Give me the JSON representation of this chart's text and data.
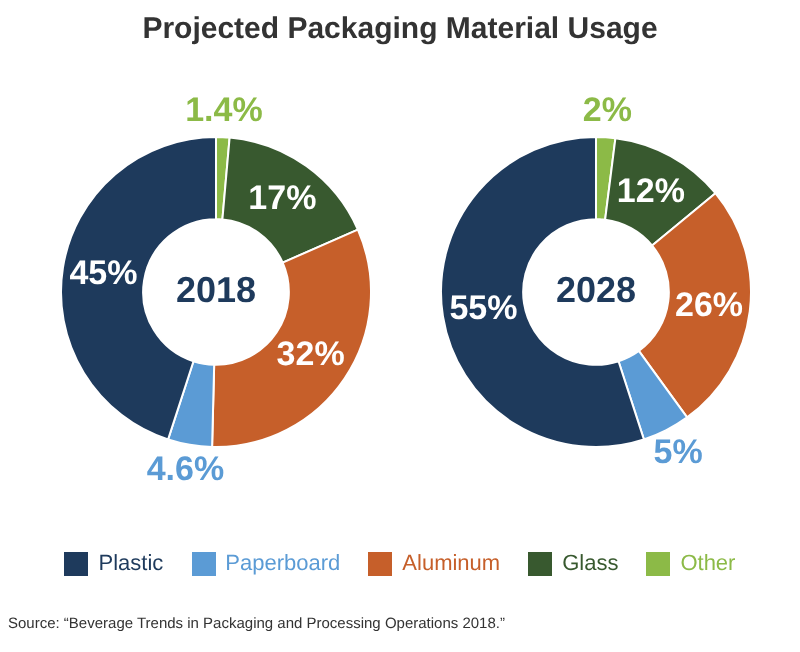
{
  "chart_data": {
    "type": "donut",
    "title": "Projected Packaging Material Usage",
    "categories": [
      "Plastic",
      "Paperboard",
      "Aluminum",
      "Glass",
      "Other"
    ],
    "colors": [
      "#1e3a5c",
      "#5b9bd5",
      "#c65f2a",
      "#38592f",
      "#8cba47"
    ],
    "series": [
      {
        "name": "2018",
        "values": [
          45,
          4.6,
          32,
          17,
          1.4
        ],
        "value_labels": [
          "45%",
          "4.6%",
          "32%",
          "17%",
          "1.4%"
        ]
      },
      {
        "name": "2028",
        "values": [
          55,
          5,
          26,
          12,
          2
        ],
        "value_labels": [
          "55%",
          "5%",
          "26%",
          "12%",
          "2%"
        ]
      }
    ],
    "legend": "bottom",
    "annotations": [
      "Source: “Beverage Trends in Packaging and Processing Operations 2018.”"
    ]
  }
}
